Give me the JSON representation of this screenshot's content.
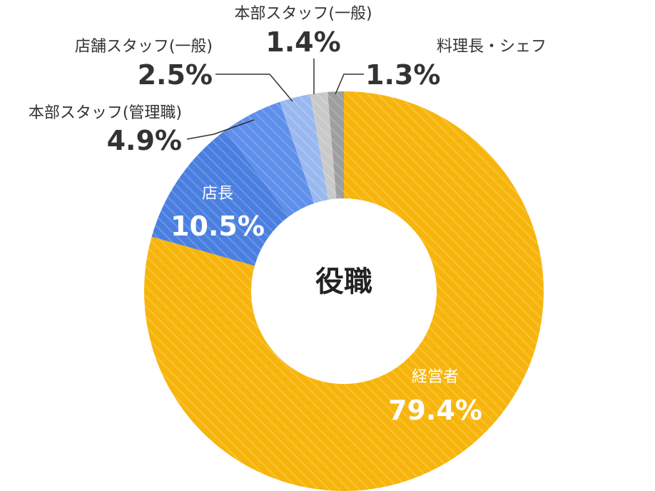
{
  "chart_data": {
    "type": "pie",
    "variant": "donut",
    "center_label": "役職",
    "slices": [
      {
        "name": "経営者",
        "value": 79.4,
        "value_label": "79.4%",
        "color": "#F7B50C"
      },
      {
        "name": "店長",
        "value": 10.5,
        "value_label": "10.5%",
        "color": "#4A7FE0"
      },
      {
        "name": "本部スタッフ(管理職)",
        "value": 4.9,
        "value_label": "4.9%",
        "color": "#5E8FEA"
      },
      {
        "name": "店舗スタッフ(一般)",
        "value": 2.5,
        "value_label": "2.5%",
        "color": "#9AB8F0"
      },
      {
        "name": "本部スタッフ(一般)",
        "value": 1.4,
        "value_label": "1.4%",
        "color": "#C9C9C9"
      },
      {
        "name": "料理長・シェフ",
        "value": 1.3,
        "value_label": "1.3%",
        "color": "#9E9E9E"
      }
    ],
    "start": "top",
    "direction": "clockwise",
    "pattern": "diagonal-stripes"
  }
}
